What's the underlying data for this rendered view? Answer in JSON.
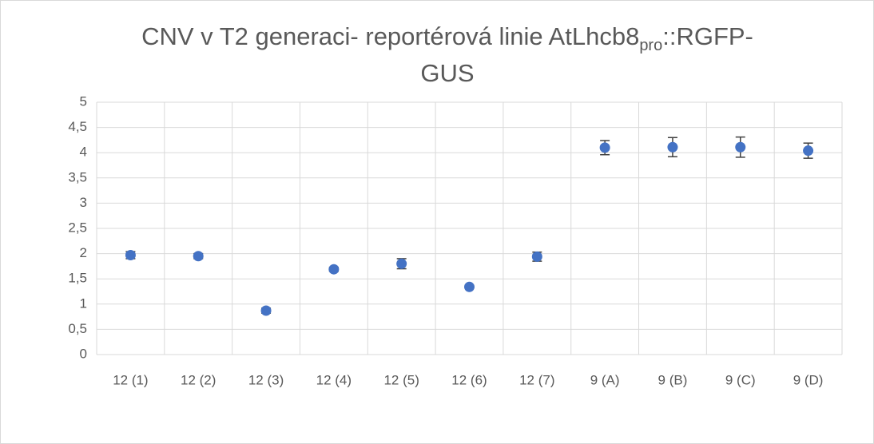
{
  "chart_data": {
    "type": "scatter",
    "title": [
      "CNV v T2 generaci- reportérová linie AtLhcb8",
      "pro",
      "::RGFP-",
      "GUS"
    ],
    "categories": [
      "12 (1)",
      "12 (2)",
      "12 (3)",
      "12 (4)",
      "12 (5)",
      "12 (6)",
      "12 (7)",
      "9 (A)",
      "9 (B)",
      "9 (C)",
      "9 (D)"
    ],
    "values": [
      1.97,
      1.95,
      0.87,
      1.69,
      1.8,
      1.34,
      1.94,
      4.1,
      4.11,
      4.11,
      4.04
    ],
    "errors": [
      0.07,
      0.05,
      0.05,
      0.04,
      0.1,
      0.02,
      0.09,
      0.14,
      0.19,
      0.2,
      0.15
    ],
    "color": "#4472c4",
    "error_color": "#404040",
    "ylim": [
      0,
      5
    ],
    "yticks": [
      0,
      {
        "value": 0.5,
        "label": "0,5"
      },
      1,
      {
        "value": 1.5,
        "label": "1,5"
      },
      2,
      {
        "value": 2.5,
        "label": "2,5"
      },
      3,
      {
        "value": 3.5,
        "label": "3,5"
      },
      4,
      {
        "value": 4.5,
        "label": "4,5"
      },
      5
    ],
    "grid": true
  }
}
